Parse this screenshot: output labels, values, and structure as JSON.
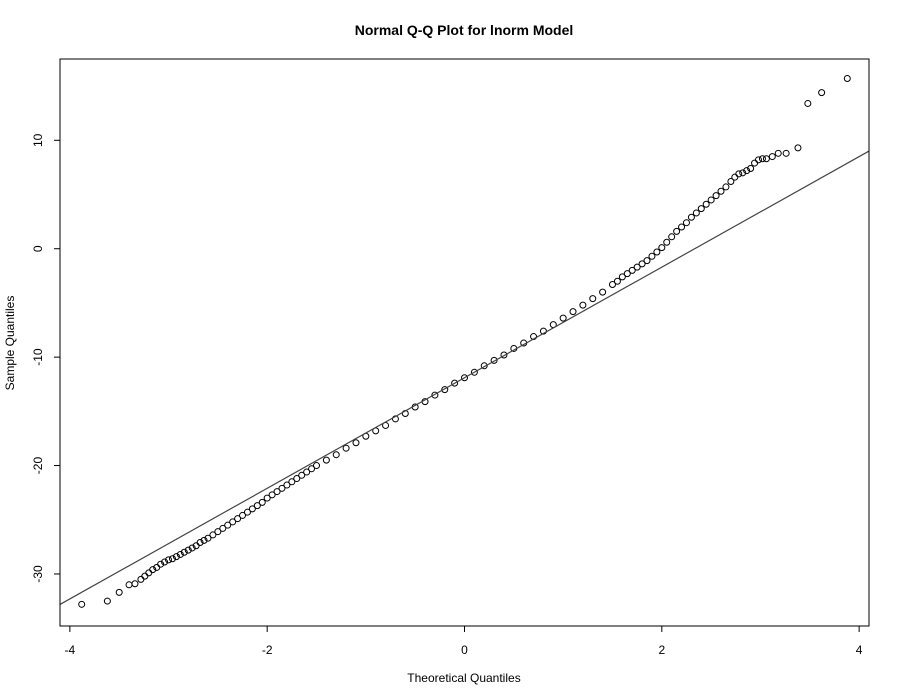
{
  "chart_data": {
    "type": "scatter",
    "title": "Normal Q-Q Plot for lnorm Model",
    "xlabel": "Theoretical Quantiles",
    "ylabel": "Sample Quantiles",
    "xlim": [
      -4.1,
      4.1
    ],
    "ylim": [
      -34.8,
      17.5
    ],
    "x_ticks": [
      -4,
      -2,
      0,
      2,
      4
    ],
    "x_tick_labels": [
      "-4",
      "-2",
      "0",
      "2",
      "4"
    ],
    "y_ticks": [
      -30,
      -20,
      -10,
      0,
      10
    ],
    "y_tick_labels": [
      "-30",
      "-20",
      "-10",
      "0",
      "10"
    ],
    "grid": false,
    "legend": "none",
    "reference_line": {
      "intercept": -11.9,
      "slope": 5.1
    },
    "series": [
      {
        "marker": "open-circle",
        "color": "#000000",
        "points": [
          [
            -3.88,
            -32.8
          ],
          [
            -3.62,
            -32.5
          ],
          [
            -3.5,
            -31.7
          ],
          [
            -3.4,
            -31.0
          ],
          [
            -3.34,
            -30.9
          ],
          [
            -3.28,
            -30.5
          ],
          [
            -3.24,
            -30.2
          ],
          [
            -3.2,
            -29.9
          ],
          [
            -3.16,
            -29.6
          ],
          [
            -3.12,
            -29.4
          ],
          [
            -3.08,
            -29.1
          ],
          [
            -3.04,
            -28.9
          ],
          [
            -3.0,
            -28.7
          ],
          [
            -2.96,
            -28.6
          ],
          [
            -2.92,
            -28.4
          ],
          [
            -2.88,
            -28.2
          ],
          [
            -2.84,
            -28.0
          ],
          [
            -2.8,
            -27.8
          ],
          [
            -2.76,
            -27.6
          ],
          [
            -2.72,
            -27.4
          ],
          [
            -2.68,
            -27.1
          ],
          [
            -2.64,
            -26.9
          ],
          [
            -2.6,
            -26.7
          ],
          [
            -2.55,
            -26.4
          ],
          [
            -2.5,
            -26.1
          ],
          [
            -2.45,
            -25.8
          ],
          [
            -2.4,
            -25.5
          ],
          [
            -2.35,
            -25.2
          ],
          [
            -2.3,
            -24.9
          ],
          [
            -2.25,
            -24.6
          ],
          [
            -2.2,
            -24.3
          ],
          [
            -2.15,
            -24.0
          ],
          [
            -2.1,
            -23.7
          ],
          [
            -2.05,
            -23.4
          ],
          [
            -2.0,
            -23.0
          ],
          [
            -1.95,
            -22.7
          ],
          [
            -1.9,
            -22.4
          ],
          [
            -1.85,
            -22.1
          ],
          [
            -1.8,
            -21.8
          ],
          [
            -1.75,
            -21.5
          ],
          [
            -1.7,
            -21.2
          ],
          [
            -1.65,
            -20.9
          ],
          [
            -1.6,
            -20.6
          ],
          [
            -1.55,
            -20.3
          ],
          [
            -1.5,
            -20.0
          ],
          [
            -1.4,
            -19.5
          ],
          [
            -1.3,
            -19.0
          ],
          [
            -1.2,
            -18.4
          ],
          [
            -1.1,
            -17.9
          ],
          [
            -1.0,
            -17.3
          ],
          [
            -0.9,
            -16.8
          ],
          [
            -0.8,
            -16.3
          ],
          [
            -0.7,
            -15.7
          ],
          [
            -0.6,
            -15.2
          ],
          [
            -0.5,
            -14.6
          ],
          [
            -0.4,
            -14.1
          ],
          [
            -0.3,
            -13.5
          ],
          [
            -0.2,
            -13.0
          ],
          [
            -0.1,
            -12.4
          ],
          [
            0.0,
            -11.9
          ],
          [
            0.1,
            -11.4
          ],
          [
            0.2,
            -10.8
          ],
          [
            0.3,
            -10.3
          ],
          [
            0.4,
            -9.8
          ],
          [
            0.5,
            -9.2
          ],
          [
            0.6,
            -8.7
          ],
          [
            0.7,
            -8.1
          ],
          [
            0.8,
            -7.6
          ],
          [
            0.9,
            -7.0
          ],
          [
            1.0,
            -6.4
          ],
          [
            1.1,
            -5.8
          ],
          [
            1.2,
            -5.2
          ],
          [
            1.3,
            -4.6
          ],
          [
            1.4,
            -4.0
          ],
          [
            1.5,
            -3.3
          ],
          [
            1.55,
            -3.0
          ],
          [
            1.6,
            -2.6
          ],
          [
            1.65,
            -2.3
          ],
          [
            1.7,
            -2.0
          ],
          [
            1.75,
            -1.7
          ],
          [
            1.8,
            -1.4
          ],
          [
            1.85,
            -1.1
          ],
          [
            1.9,
            -0.7
          ],
          [
            1.95,
            -0.3
          ],
          [
            2.0,
            0.1
          ],
          [
            2.05,
            0.6
          ],
          [
            2.1,
            1.1
          ],
          [
            2.15,
            1.6
          ],
          [
            2.2,
            2.0
          ],
          [
            2.25,
            2.4
          ],
          [
            2.3,
            2.9
          ],
          [
            2.35,
            3.3
          ],
          [
            2.4,
            3.7
          ],
          [
            2.45,
            4.1
          ],
          [
            2.5,
            4.5
          ],
          [
            2.55,
            4.9
          ],
          [
            2.6,
            5.3
          ],
          [
            2.65,
            5.7
          ],
          [
            2.7,
            6.2
          ],
          [
            2.74,
            6.6
          ],
          [
            2.78,
            6.9
          ],
          [
            2.82,
            7.0
          ],
          [
            2.86,
            7.2
          ],
          [
            2.9,
            7.4
          ],
          [
            2.94,
            7.9
          ],
          [
            2.98,
            8.2
          ],
          [
            3.02,
            8.3
          ],
          [
            3.06,
            8.3
          ],
          [
            3.12,
            8.5
          ],
          [
            3.18,
            8.8
          ],
          [
            3.26,
            8.8
          ],
          [
            3.38,
            9.3
          ],
          [
            3.48,
            13.4
          ],
          [
            3.62,
            14.4
          ],
          [
            3.88,
            15.7
          ]
        ]
      }
    ]
  }
}
